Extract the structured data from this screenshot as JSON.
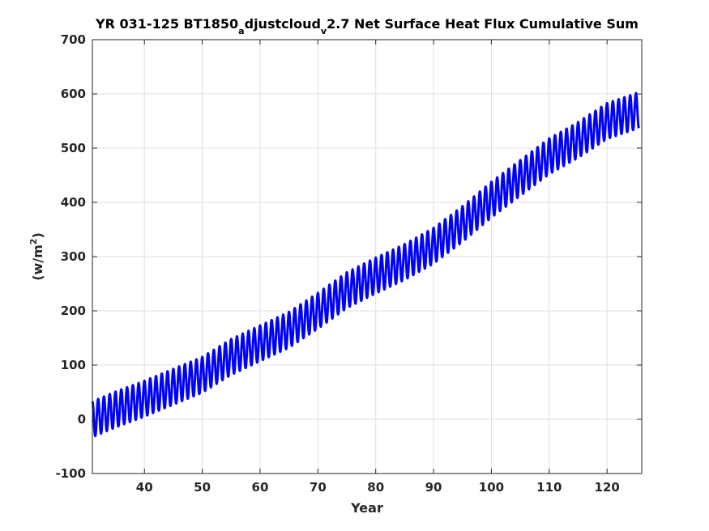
{
  "chart_data": {
    "type": "line",
    "title": {
      "part1": "YR 031-125 BT1850",
      "sub1": "a",
      "part2": "djustcloud",
      "sub2": "v",
      "part3": "2.7 Net Surface Heat Flux  Cumulative Sum"
    },
    "xlabel": "Year",
    "ylabel": {
      "prefix": "(w/m",
      "sup": "2",
      "suffix": ")"
    },
    "xlim": [
      31,
      126
    ],
    "ylim": [
      -100,
      700
    ],
    "xticks": [
      40,
      50,
      60,
      70,
      80,
      90,
      100,
      110,
      120
    ],
    "yticks": [
      -100,
      0,
      100,
      200,
      300,
      400,
      500,
      600,
      700
    ],
    "grid": true,
    "line_color": "#0000ff",
    "series": [
      {
        "trend_x": [
          31,
          35,
          40,
          45,
          50,
          55,
          60,
          65,
          70,
          75,
          80,
          85,
          90,
          95,
          100,
          105,
          110,
          115,
          120,
          125.5
        ],
        "trend_y": [
          0,
          18,
          38,
          60,
          82,
          115,
          140,
          165,
          200,
          238,
          265,
          290,
          320,
          360,
          405,
          445,
          485,
          515,
          550,
          570
        ],
        "seasonal_amplitude": 33,
        "cycles_per_year": 1
      }
    ]
  }
}
